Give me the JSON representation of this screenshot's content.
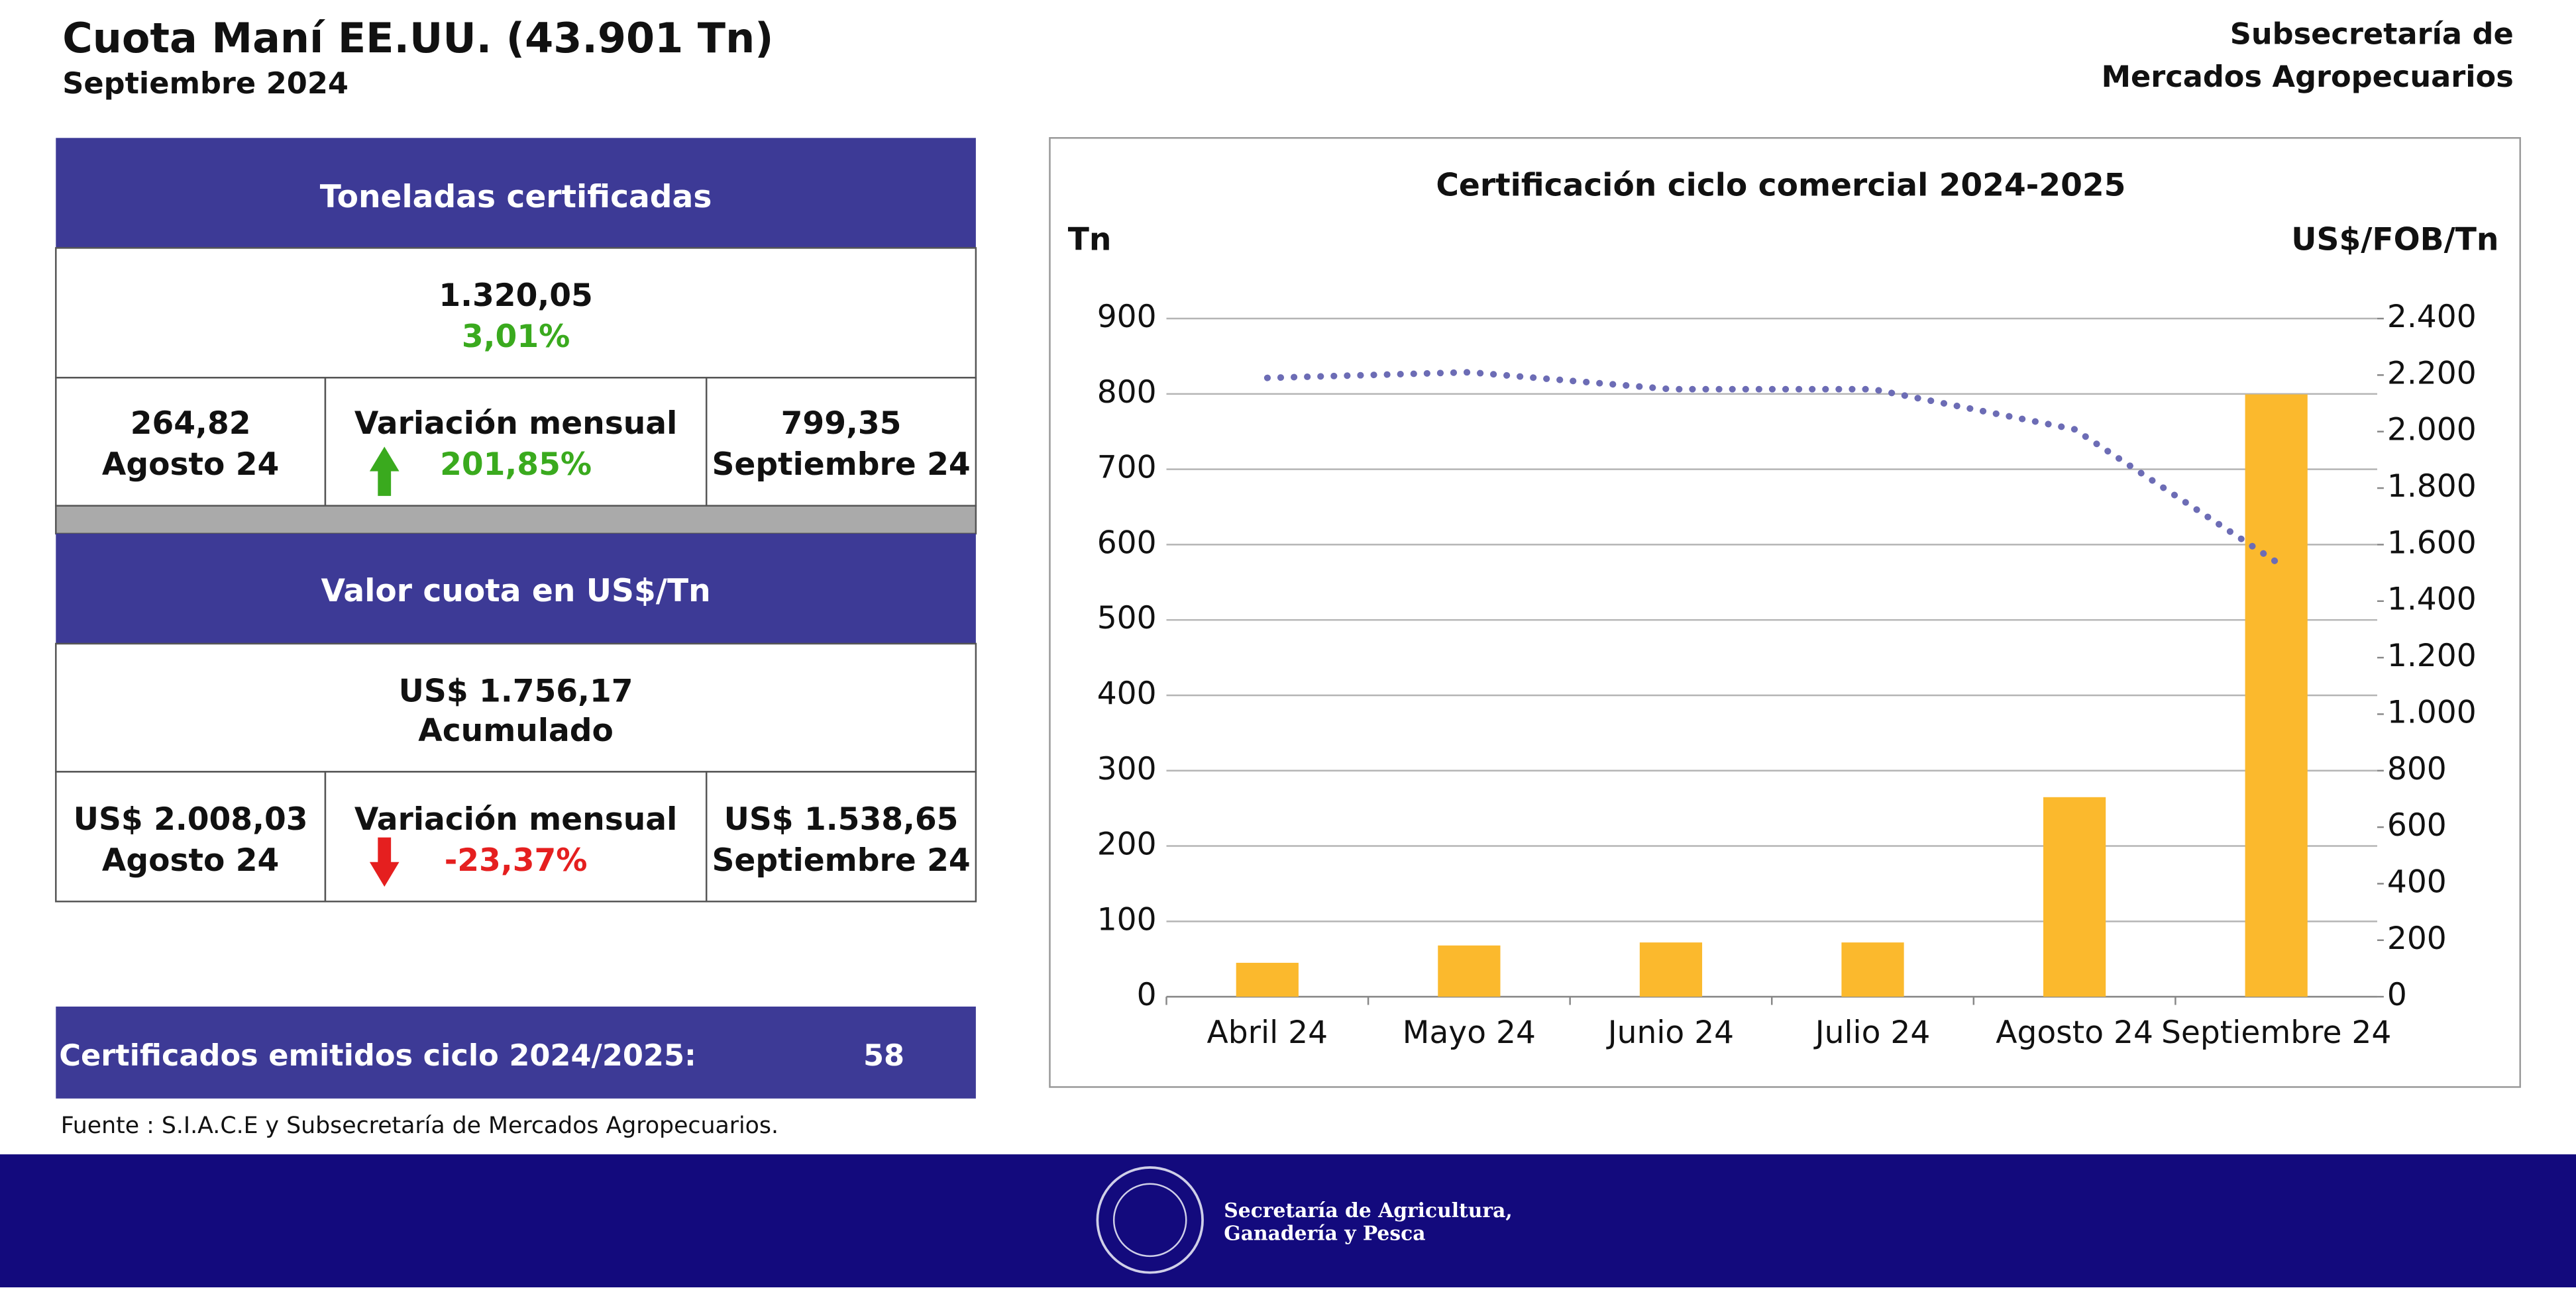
{
  "header": {
    "title": "Cuota Maní EE.UU.  (43.901 Tn)",
    "subtitle": "Septiembre 2024",
    "org": [
      "Subsecretaría de",
      "Mercados Agropecuarios"
    ]
  },
  "tonnage": {
    "title": "Toneladas certificadas",
    "total": "1.320,05",
    "share": "3,01%",
    "prev": {
      "value": "264,82",
      "month": "Agosto 24"
    },
    "change": {
      "label": "Variación mensual",
      "value": "201,85%"
    },
    "current": {
      "value": "799,35",
      "month": "Septiembre 24"
    }
  },
  "price": {
    "title": "Valor cuota en US$/Tn",
    "total": "US$ 1.756,17",
    "total_label": "Acumulado",
    "prev": {
      "value": "US$ 2.008,03",
      "month": "Agosto 24"
    },
    "change": {
      "label": "Variación mensual",
      "value": "-23,37%"
    },
    "current": {
      "value": "US$ 1.538,65",
      "month": "Septiembre 24"
    }
  },
  "certificates": {
    "label": "Certificados emitidos  ciclo 2024/2025:",
    "value": "58"
  },
  "source": "Fuente : S.I.A.C.E y Subsecretaría de Mercados Agropecuarios.",
  "footer": {
    "org": [
      "Secretaría de Agricultura,",
      "Ganadería y Pesca"
    ]
  },
  "chart_data": {
    "type": "bar",
    "title": "Certificación ciclo comercial 2024-2025",
    "y_label": "Tn",
    "y2_label": "US$/FOB/Tn",
    "categories": [
      "Abril 24",
      "Mayo 24",
      "Junio 24",
      "Julio 24",
      "Agosto 24",
      "Septiembre 24"
    ],
    "series": [
      {
        "type": "bar",
        "color": "#fbb92d",
        "values": [
          45,
          68,
          72,
          72,
          264.82,
          799.35
        ]
      },
      {
        "type": "line",
        "axis": "y2",
        "color": "#6c6cb5",
        "values": [
          2190,
          2210,
          2150,
          2150,
          2008.03,
          1538.65
        ]
      }
    ],
    "ylim": [
      0,
      900
    ],
    "yticks": [
      0,
      100,
      200,
      300,
      400,
      500,
      600,
      700,
      800,
      900
    ],
    "y2lim": [
      0,
      2400
    ],
    "y2ticks": [
      0,
      200,
      400,
      600,
      800,
      {
        "value": 1000,
        "label": "1.000"
      },
      {
        "value": 1200,
        "label": "1.200"
      },
      {
        "value": 1400,
        "label": "1.400"
      },
      {
        "value": 1600,
        "label": "1.600"
      },
      {
        "value": 1800,
        "label": "1.800"
      },
      {
        "value": 2000,
        "label": "2.000"
      },
      {
        "value": 2200,
        "label": "2.200"
      },
      {
        "value": 2400,
        "label": "2.400"
      }
    ],
    "grid": true
  }
}
